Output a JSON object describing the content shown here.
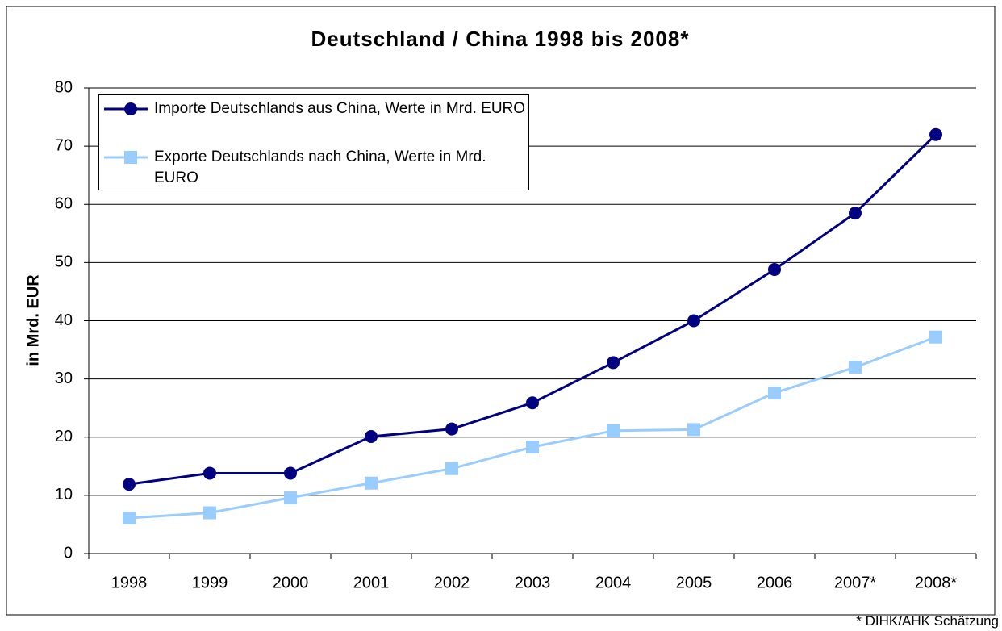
{
  "chart_data": {
    "type": "line",
    "title": "Deutschland / China 1998 bis 2008*",
    "y_label": "in Mrd. EUR",
    "footnote": "* DIHK/AHK Schätzung",
    "categories": [
      "1998",
      "1999",
      "2000",
      "2001",
      "2002",
      "2003",
      "2004",
      "2005",
      "2006",
      "2007*",
      "2008*"
    ],
    "series": [
      {
        "name": "Importe Deutschlands aus China, Werte in Mrd. EURO",
        "color": "#000080",
        "marker": "circle",
        "values": [
          11.9,
          13.8,
          13.8,
          20.1,
          21.4,
          25.9,
          32.8,
          40.0,
          48.8,
          58.5,
          72.0
        ]
      },
      {
        "name": "Exporte Deutschlands nach China, Werte in Mrd. EURO",
        "color": "#99ccff",
        "marker": "square",
        "values": [
          6.1,
          7.0,
          9.6,
          12.1,
          14.6,
          18.3,
          21.1,
          21.3,
          27.6,
          32.0,
          37.2
        ]
      }
    ],
    "ylim": [
      0,
      80
    ],
    "yticks": [
      0,
      10,
      20,
      30,
      40,
      50,
      60,
      70,
      80
    ],
    "grid": true,
    "legend": "top-left"
  }
}
